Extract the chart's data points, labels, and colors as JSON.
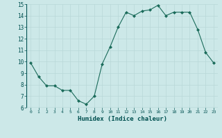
{
  "x": [
    0,
    1,
    2,
    3,
    4,
    5,
    6,
    7,
    8,
    9,
    10,
    11,
    12,
    13,
    14,
    15,
    16,
    17,
    18,
    19,
    20,
    21,
    22,
    23
  ],
  "y": [
    9.9,
    8.7,
    7.9,
    7.9,
    7.5,
    7.5,
    6.6,
    6.3,
    7.0,
    9.8,
    11.3,
    13.0,
    14.3,
    14.0,
    14.4,
    14.5,
    14.9,
    14.0,
    14.3,
    14.3,
    14.3,
    12.8,
    10.8,
    9.9
  ],
  "line_color": "#1a6b5a",
  "marker": "D",
  "marker_size": 2.0,
  "bg_color": "#cce8e8",
  "grid_color": "#b8d8d8",
  "xlabel": "Humidex (Indice chaleur)",
  "xlabel_color": "#005050",
  "tick_color": "#005050",
  "ylim": [
    6,
    15
  ],
  "xlim_min": -0.5,
  "xlim_max": 23.5,
  "yticks": [
    6,
    7,
    8,
    9,
    10,
    11,
    12,
    13,
    14,
    15
  ],
  "xticks": [
    0,
    1,
    2,
    3,
    4,
    5,
    6,
    7,
    8,
    9,
    10,
    11,
    12,
    13,
    14,
    15,
    16,
    17,
    18,
    19,
    20,
    21,
    22,
    23
  ]
}
